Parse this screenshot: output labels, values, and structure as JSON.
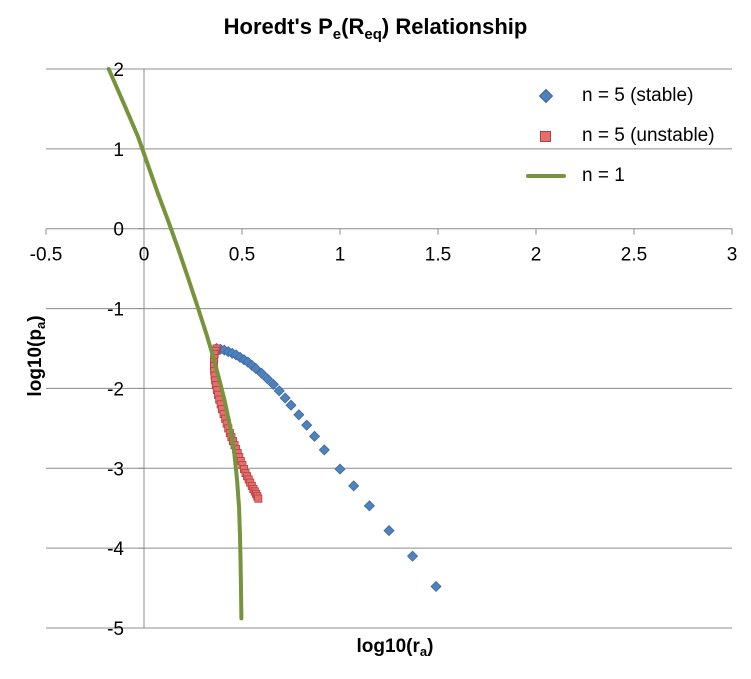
{
  "chart_data": {
    "type": "scatter",
    "title": {
      "prefix": "Horedt's P",
      "sub1": "e",
      "mid": "(R",
      "sub2": "eq",
      "suffix": ") Relationship"
    },
    "xlabel": {
      "text": "log10(r",
      "sub": "a",
      "suffix": ")"
    },
    "ylabel": {
      "text": "log10(p",
      "sub": "a",
      "suffix": ")"
    },
    "xlim": [
      -0.5,
      3
    ],
    "ylim": [
      -5,
      2
    ],
    "xticks": [
      -0.5,
      0,
      0.5,
      1,
      1.5,
      2,
      2.5,
      3
    ],
    "xtick_labels": [
      "-0.5",
      "0",
      "0.5",
      "1",
      "1.5",
      "2",
      "2.5",
      "3"
    ],
    "yticks": [
      -5,
      -4,
      -3,
      -2,
      -1,
      0,
      1,
      2
    ],
    "ytick_labels": [
      "-5",
      "-4",
      "-3",
      "-2",
      "-1",
      "0",
      "1",
      "2"
    ],
    "grid": "horizontal",
    "legend_position": "top-right",
    "series": [
      {
        "name": "n = 5 (stable)",
        "marker": "diamond",
        "color": "#4f81bd",
        "x": [
          0.37,
          0.39,
          0.41,
          0.43,
          0.45,
          0.47,
          0.49,
          0.51,
          0.53,
          0.55,
          0.57,
          0.6,
          0.63,
          0.66,
          0.69,
          0.72,
          0.75,
          0.79,
          0.83,
          0.87,
          0.92,
          1.0,
          1.07,
          1.15,
          1.25,
          1.37,
          1.49
        ],
        "y": [
          -1.5,
          -1.51,
          -1.52,
          -1.54,
          -1.56,
          -1.58,
          -1.61,
          -1.64,
          -1.67,
          -1.71,
          -1.75,
          -1.81,
          -1.88,
          -1.95,
          -2.03,
          -2.12,
          -2.21,
          -2.33,
          -2.46,
          -2.6,
          -2.77,
          -3.01,
          -3.22,
          -3.47,
          -3.78,
          -4.1,
          -4.48
        ]
      },
      {
        "name": "n = 5 (unstable)",
        "marker": "square",
        "color": "#e46f6f",
        "x": [
          0.37,
          0.365,
          0.36,
          0.358,
          0.357,
          0.357,
          0.358,
          0.36,
          0.363,
          0.367,
          0.372,
          0.378,
          0.384,
          0.391,
          0.398,
          0.406,
          0.414,
          0.422,
          0.43,
          0.438,
          0.446,
          0.454,
          0.462,
          0.47,
          0.478,
          0.486,
          0.494,
          0.502,
          0.51,
          0.518,
          0.526,
          0.534,
          0.542,
          0.55,
          0.558,
          0.565,
          0.572,
          0.578,
          0.583
        ],
        "y": [
          -1.5,
          -1.53,
          -1.57,
          -1.62,
          -1.67,
          -1.72,
          -1.78,
          -1.84,
          -1.9,
          -1.96,
          -2.02,
          -2.08,
          -2.14,
          -2.2,
          -2.26,
          -2.32,
          -2.38,
          -2.44,
          -2.5,
          -2.56,
          -2.61,
          -2.66,
          -2.71,
          -2.76,
          -2.81,
          -2.86,
          -2.91,
          -2.96,
          -3.01,
          -3.06,
          -3.1,
          -3.14,
          -3.18,
          -3.22,
          -3.26,
          -3.29,
          -3.32,
          -3.35,
          -3.38
        ]
      },
      {
        "name": "n = 1",
        "marker": "line",
        "color": "#77933c",
        "x": [
          -0.18,
          -0.1,
          -0.03,
          0.02,
          0.07,
          0.12,
          0.17,
          0.22,
          0.27,
          0.32,
          0.35,
          0.38,
          0.41,
          0.44,
          0.46,
          0.475,
          0.485,
          0.49,
          0.493,
          0.495,
          0.496,
          0.497
        ],
        "y": [
          2.0,
          1.55,
          1.15,
          0.8,
          0.45,
          0.12,
          -0.22,
          -0.58,
          -0.95,
          -1.33,
          -1.58,
          -1.85,
          -2.14,
          -2.48,
          -2.8,
          -3.15,
          -3.5,
          -3.85,
          -4.2,
          -4.5,
          -4.7,
          -4.88
        ]
      }
    ]
  }
}
